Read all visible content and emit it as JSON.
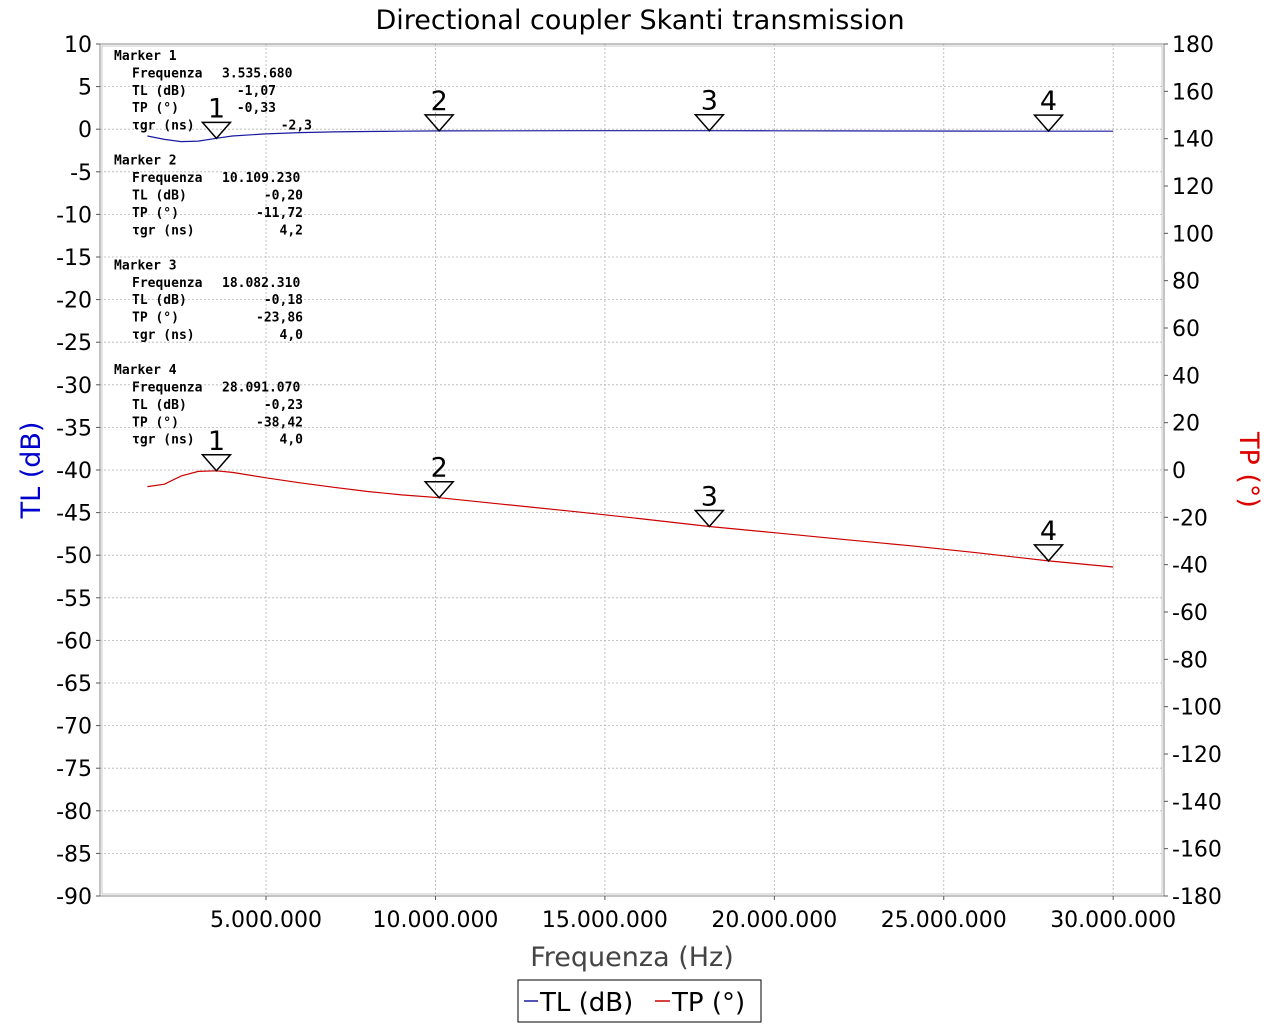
{
  "chart_data": {
    "type": "line",
    "title": "Directional coupler Skanti transmission",
    "xlabel": "Frequenza (Hz)",
    "ylabel_left": "TL (dB)",
    "ylabel_right": "TP (°)",
    "xlim": [
      100000,
      31500000
    ],
    "ylim_left": [
      -90,
      10
    ],
    "ylim_right": [
      -180,
      180
    ],
    "x_ticks": [
      {
        "value": 5000000,
        "label": "5.000.000"
      },
      {
        "value": 10000000,
        "label": "10.000.000"
      },
      {
        "value": 15000000,
        "label": "15.000.000"
      },
      {
        "value": 20000000,
        "label": "20.000.000"
      },
      {
        "value": 25000000,
        "label": "25.000.000"
      },
      {
        "value": 30000000,
        "label": "30.000.000"
      }
    ],
    "y_left_ticks": [
      10,
      5,
      0,
      -5,
      -10,
      -15,
      -20,
      -25,
      -30,
      -35,
      -40,
      -45,
      -50,
      -55,
      -60,
      -65,
      -70,
      -75,
      -80,
      -85,
      -90
    ],
    "y_right_ticks": [
      180,
      160,
      140,
      120,
      100,
      80,
      60,
      40,
      20,
      0,
      -20,
      -40,
      -60,
      -80,
      -100,
      -120,
      -140,
      -160,
      -180
    ],
    "grid": true,
    "legend_position": "bottom-center",
    "colors": {
      "TL": "#1a1aa0",
      "TP": "#cc0000",
      "left_axis_title": "#0000cc",
      "right_axis_title": "#dd0000",
      "grid": "#b4b4b4"
    },
    "series": [
      {
        "name": "TL (dB)",
        "axis": "left",
        "x": [
          1500000,
          2000000,
          2500000,
          3000000,
          3535680,
          4000000,
          5000000,
          6000000,
          7000000,
          8000000,
          9000000,
          10109230,
          12000000,
          14000000,
          16000000,
          18082310,
          20000000,
          22000000,
          24000000,
          26000000,
          27000000,
          28091070,
          30000000
        ],
        "values": [
          -0.8,
          -1.2,
          -1.45,
          -1.4,
          -1.07,
          -0.8,
          -0.55,
          -0.4,
          -0.32,
          -0.27,
          -0.24,
          -0.2,
          -0.19,
          -0.18,
          -0.18,
          -0.18,
          -0.19,
          -0.2,
          -0.21,
          -0.22,
          -0.23,
          -0.23,
          -0.24
        ]
      },
      {
        "name": "TP (°)",
        "axis": "right",
        "x": [
          1500000,
          2000000,
          2500000,
          3000000,
          3535680,
          4000000,
          5000000,
          6000000,
          7000000,
          8000000,
          9000000,
          10109230,
          12000000,
          14000000,
          16000000,
          18082310,
          20000000,
          22000000,
          24000000,
          26000000,
          28091070,
          30000000
        ],
        "values": [
          -7,
          -6,
          -2.5,
          -0.6,
          -0.33,
          -1,
          -3.3,
          -5.4,
          -7.3,
          -9.1,
          -10.5,
          -11.72,
          -14.5,
          -17.4,
          -20.5,
          -23.86,
          -26.5,
          -29.3,
          -32,
          -35,
          -38.42,
          -41
        ]
      }
    ],
    "markers": [
      {
        "label": "1",
        "x": 3535680,
        "tl": -1.07,
        "tp": -0.33
      },
      {
        "label": "2",
        "x": 10109230,
        "tl": -0.2,
        "tp": -11.72
      },
      {
        "label": "3",
        "x": 18082310,
        "tl": -0.18,
        "tp": -23.86
      },
      {
        "label": "4",
        "x": 28091070,
        "tl": -0.23,
        "tp": -38.42
      }
    ],
    "annotations": [
      {
        "title": "Marker 1",
        "lines": [
          {
            "label": "Frequenza",
            "value": "3.535.680"
          },
          {
            "label": "TL (dB)",
            "value": "-1,07"
          },
          {
            "label": "TP (°)",
            "value": "-0,33"
          },
          {
            "label": "τgr (ns)",
            "value": "-2,3"
          }
        ]
      },
      {
        "title": "Marker 2",
        "lines": [
          {
            "label": "Frequenza",
            "value": "10.109.230"
          },
          {
            "label": "TL (dB)",
            "value": "-0,20"
          },
          {
            "label": "TP (°)",
            "value": "-11,72"
          },
          {
            "label": "τgr (ns)",
            "value": "4,2"
          }
        ]
      },
      {
        "title": "Marker 3",
        "lines": [
          {
            "label": "Frequenza",
            "value": "18.082.310"
          },
          {
            "label": "TL (dB)",
            "value": "-0,18"
          },
          {
            "label": "TP (°)",
            "value": "-23,86"
          },
          {
            "label": "τgr (ns)",
            "value": "4,0"
          }
        ]
      },
      {
        "title": "Marker 4",
        "lines": [
          {
            "label": "Frequenza",
            "value": "28.091.070"
          },
          {
            "label": "TL (dB)",
            "value": "-0,23"
          },
          {
            "label": "TP (°)",
            "value": "-38,42"
          },
          {
            "label": "τgr (ns)",
            "value": "4,0"
          }
        ]
      }
    ]
  }
}
